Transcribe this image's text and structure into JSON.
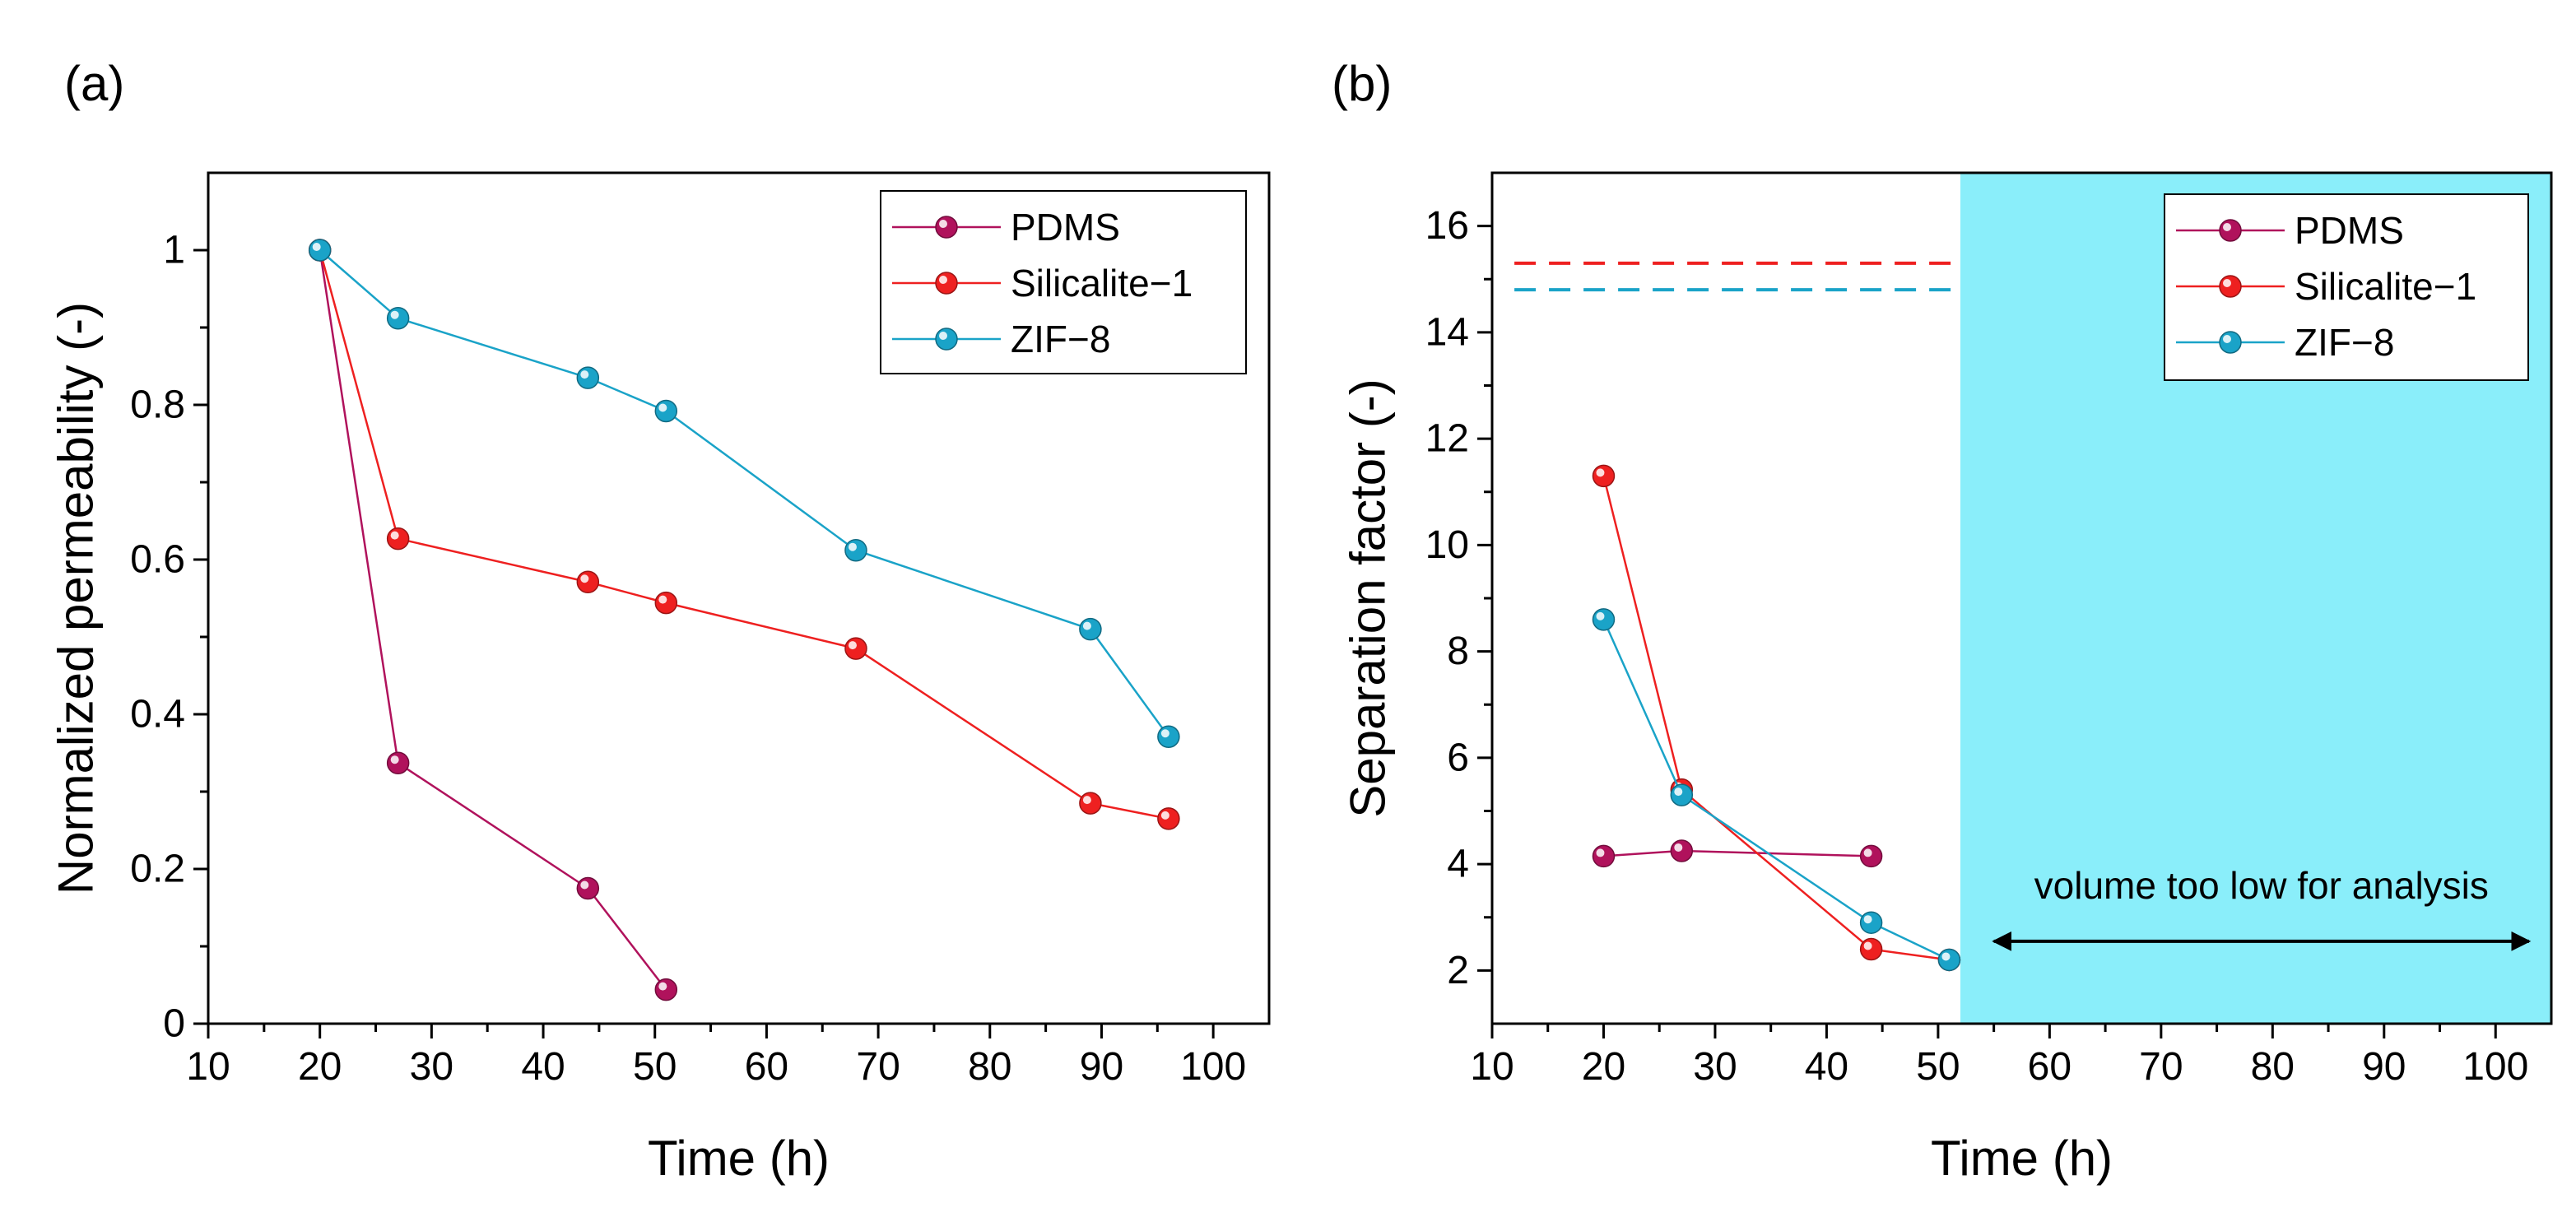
{
  "chart_data": [
    {
      "type": "line",
      "panel_label": "(a)",
      "xlabel": "Time (h)",
      "ylabel": "Normalized permeability (-)",
      "xlim": [
        10,
        105
      ],
      "ylim": [
        0,
        1.1
      ],
      "xticks": [
        10,
        20,
        30,
        40,
        50,
        60,
        70,
        80,
        90,
        100
      ],
      "xtick_labels": [
        "10",
        "20",
        "30",
        "40",
        "50",
        "60",
        "70",
        "80",
        "90",
        "100"
      ],
      "yticks": [
        0,
        0.2,
        0.4,
        0.6,
        0.8,
        1
      ],
      "ytick_labels": [
        "0",
        "0.2",
        "0.4",
        "0.6",
        "0.8",
        "1"
      ],
      "grid": false,
      "legend_position": "top-right",
      "series": [
        {
          "name": "PDMS",
          "color": "#b0125c",
          "x": [
            20,
            27,
            44,
            51
          ],
          "y": [
            1.0,
            0.337,
            0.175,
            0.044
          ]
        },
        {
          "name": "Silicalite−1",
          "color": "#ee2020",
          "x": [
            20,
            27,
            44,
            51,
            68,
            89,
            96
          ],
          "y": [
            1.0,
            0.627,
            0.571,
            0.544,
            0.485,
            0.285,
            0.265
          ]
        },
        {
          "name": "ZIF−8",
          "color": "#1aa3c8",
          "x": [
            20,
            27,
            44,
            51,
            68,
            89,
            96
          ],
          "y": [
            1.0,
            0.912,
            0.835,
            0.792,
            0.612,
            0.51,
            0.371
          ]
        }
      ]
    },
    {
      "type": "line",
      "panel_label": "(b)",
      "xlabel": "Time (h)",
      "ylabel": "Separation factor (-)",
      "xlim": [
        10,
        105
      ],
      "ylim": [
        1,
        17
      ],
      "xticks": [
        10,
        20,
        30,
        40,
        50,
        60,
        70,
        80,
        90,
        100
      ],
      "xtick_labels": [
        "10",
        "20",
        "30",
        "40",
        "50",
        "60",
        "70",
        "80",
        "90",
        "100"
      ],
      "yticks": [
        2,
        4,
        6,
        8,
        10,
        12,
        14,
        16
      ],
      "ytick_labels": [
        "2",
        "4",
        "6",
        "8",
        "10",
        "12",
        "14",
        "16"
      ],
      "grid": false,
      "legend_position": "top-right",
      "shaded_region": {
        "x_start": 52,
        "x_end": 105,
        "color": "#8aeefa"
      },
      "reference_lines": [
        {
          "series": "Silicalite−1",
          "y": 15.3,
          "color": "#ee2020",
          "x_start": 12,
          "x_end": 52
        },
        {
          "series": "ZIF−8",
          "y": 14.8,
          "color": "#1aa3c8",
          "x_start": 12,
          "x_end": 52
        }
      ],
      "annotation": {
        "text": "volume too low for analysis",
        "arrow_x": [
          55,
          103
        ],
        "arrow_y": 2.55
      },
      "series": [
        {
          "name": "PDMS",
          "color": "#b0125c",
          "x": [
            20,
            27,
            44
          ],
          "y": [
            4.15,
            4.25,
            4.15
          ]
        },
        {
          "name": "Silicalite−1",
          "color": "#ee2020",
          "x": [
            20,
            27,
            44,
            51
          ],
          "y": [
            11.3,
            5.4,
            2.4,
            2.2
          ]
        },
        {
          "name": "ZIF−8",
          "color": "#1aa3c8",
          "x": [
            20,
            27,
            44,
            51
          ],
          "y": [
            8.6,
            5.3,
            2.9,
            2.2
          ]
        }
      ]
    }
  ]
}
